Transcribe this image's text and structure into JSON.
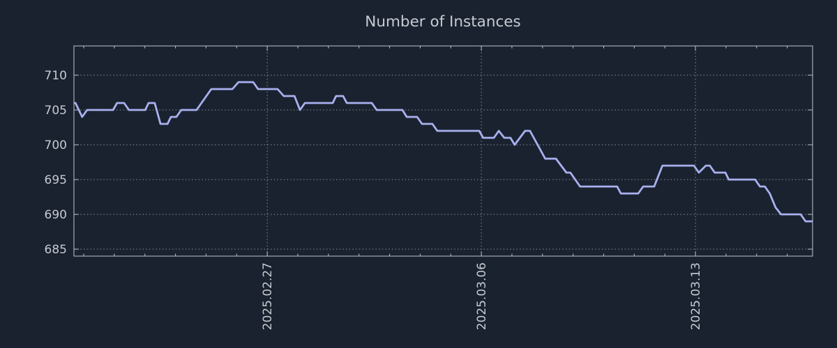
{
  "appearance": {
    "background_color": "#1a2230",
    "line_color": "#a9b1ef",
    "text_color": "#c7cad1",
    "grid_color": "#8b919b",
    "border_color": "#c0c4ca"
  },
  "chart_data": {
    "type": "line",
    "title": "Number of Instances",
    "xlabel": "",
    "ylabel": "",
    "legend": "none",
    "grid": "dotted, major ticks only",
    "x_tick_labels": [
      "2025.02.27",
      "2025.03.06",
      "2025.03.13"
    ],
    "x_tick_positions_days": [
      6.32,
      13.32,
      20.32
    ],
    "x_minor_tick_start_day": 0.32,
    "x_minor_tick_interval_days": 1,
    "xlim_days": [
      0,
      24.15
    ],
    "y_ticks": [
      685,
      690,
      695,
      700,
      705,
      710
    ],
    "ylim": [
      684,
      714.2
    ],
    "series": [
      {
        "name": "instances",
        "points": [
          [
            0.0,
            706
          ],
          [
            0.05,
            706
          ],
          [
            0.27,
            704
          ],
          [
            0.43,
            705
          ],
          [
            1.28,
            705
          ],
          [
            1.41,
            706
          ],
          [
            1.64,
            706
          ],
          [
            1.8,
            705
          ],
          [
            2.33,
            705
          ],
          [
            2.44,
            706
          ],
          [
            2.64,
            706
          ],
          [
            2.83,
            703
          ],
          [
            3.06,
            703
          ],
          [
            3.17,
            704
          ],
          [
            3.35,
            704
          ],
          [
            3.51,
            705
          ],
          [
            4.01,
            705
          ],
          [
            4.49,
            708
          ],
          [
            5.18,
            708
          ],
          [
            5.38,
            709
          ],
          [
            5.86,
            709
          ],
          [
            6.02,
            708
          ],
          [
            6.66,
            708
          ],
          [
            6.86,
            707
          ],
          [
            7.21,
            707
          ],
          [
            7.39,
            705
          ],
          [
            7.55,
            706
          ],
          [
            8.46,
            706
          ],
          [
            8.57,
            707
          ],
          [
            8.8,
            707
          ],
          [
            8.92,
            706
          ],
          [
            9.74,
            706
          ],
          [
            9.9,
            705
          ],
          [
            10.74,
            705
          ],
          [
            10.88,
            704
          ],
          [
            11.22,
            704
          ],
          [
            11.38,
            703
          ],
          [
            11.72,
            703
          ],
          [
            11.88,
            702
          ],
          [
            13.25,
            702
          ],
          [
            13.38,
            701
          ],
          [
            13.73,
            701
          ],
          [
            13.89,
            702
          ],
          [
            14.07,
            701
          ],
          [
            14.27,
            701
          ],
          [
            14.41,
            700
          ],
          [
            14.75,
            702
          ],
          [
            14.91,
            702
          ],
          [
            15.41,
            698
          ],
          [
            15.76,
            698
          ],
          [
            16.1,
            696
          ],
          [
            16.23,
            696
          ],
          [
            16.55,
            694
          ],
          [
            17.76,
            694
          ],
          [
            17.88,
            693
          ],
          [
            18.45,
            693
          ],
          [
            18.61,
            694
          ],
          [
            18.97,
            694
          ],
          [
            19.24,
            697
          ],
          [
            20.27,
            697
          ],
          [
            20.43,
            696
          ],
          [
            20.66,
            697
          ],
          [
            20.79,
            697
          ],
          [
            20.95,
            696
          ],
          [
            21.3,
            696
          ],
          [
            21.41,
            695
          ],
          [
            22.27,
            695
          ],
          [
            22.43,
            694
          ],
          [
            22.59,
            694
          ],
          [
            22.75,
            693
          ],
          [
            22.94,
            691
          ],
          [
            23.12,
            690
          ],
          [
            23.76,
            690
          ],
          [
            23.92,
            689
          ],
          [
            24.15,
            689
          ]
        ]
      }
    ]
  }
}
